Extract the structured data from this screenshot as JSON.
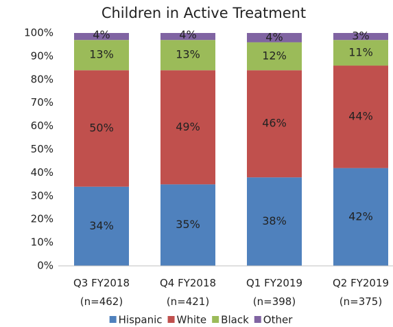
{
  "chart_data": {
    "type": "stacked_bar",
    "title": "Children in Active Treatment",
    "categories": [
      "Q3 FY2018\n(n=462)",
      "Q4 FY2018\n(n=421)",
      "Q1 FY2019\n(n=398)",
      "Q2 FY2019\n(n=375)"
    ],
    "series": [
      {
        "name": "Hispanic",
        "color": "#4f81bd",
        "values": [
          34,
          35,
          38,
          42
        ],
        "value_labels": [
          "34%",
          "35%",
          "38%",
          "42%"
        ]
      },
      {
        "name": "White",
        "color": "#c0504d",
        "values": [
          50,
          49,
          46,
          44
        ],
        "value_labels": [
          "50%",
          "49%",
          "46%",
          "44%"
        ]
      },
      {
        "name": "Black",
        "color": "#9bbb59",
        "values": [
          13,
          13,
          12,
          11
        ],
        "value_labels": [
          "13%",
          "13%",
          "12%",
          "11%"
        ]
      },
      {
        "name": "Other",
        "color": "#8064a2",
        "values": [
          4,
          4,
          4,
          3
        ],
        "value_labels": [
          "4%",
          "4%",
          "4%",
          "3%"
        ]
      }
    ],
    "ylim": [
      0,
      100
    ],
    "yticks": [
      {
        "value": 0,
        "label": "0%"
      },
      {
        "value": 10,
        "label": "10%"
      },
      {
        "value": 20,
        "label": "20%"
      },
      {
        "value": 30,
        "label": "30%"
      },
      {
        "value": 40,
        "label": "40%"
      },
      {
        "value": 50,
        "label": "50%"
      },
      {
        "value": 60,
        "label": "60%"
      },
      {
        "value": 70,
        "label": "70%"
      },
      {
        "value": 80,
        "label": "80%"
      },
      {
        "value": 90,
        "label": "90%"
      },
      {
        "value": 100,
        "label": "100%"
      }
    ],
    "legend": "bottom"
  }
}
